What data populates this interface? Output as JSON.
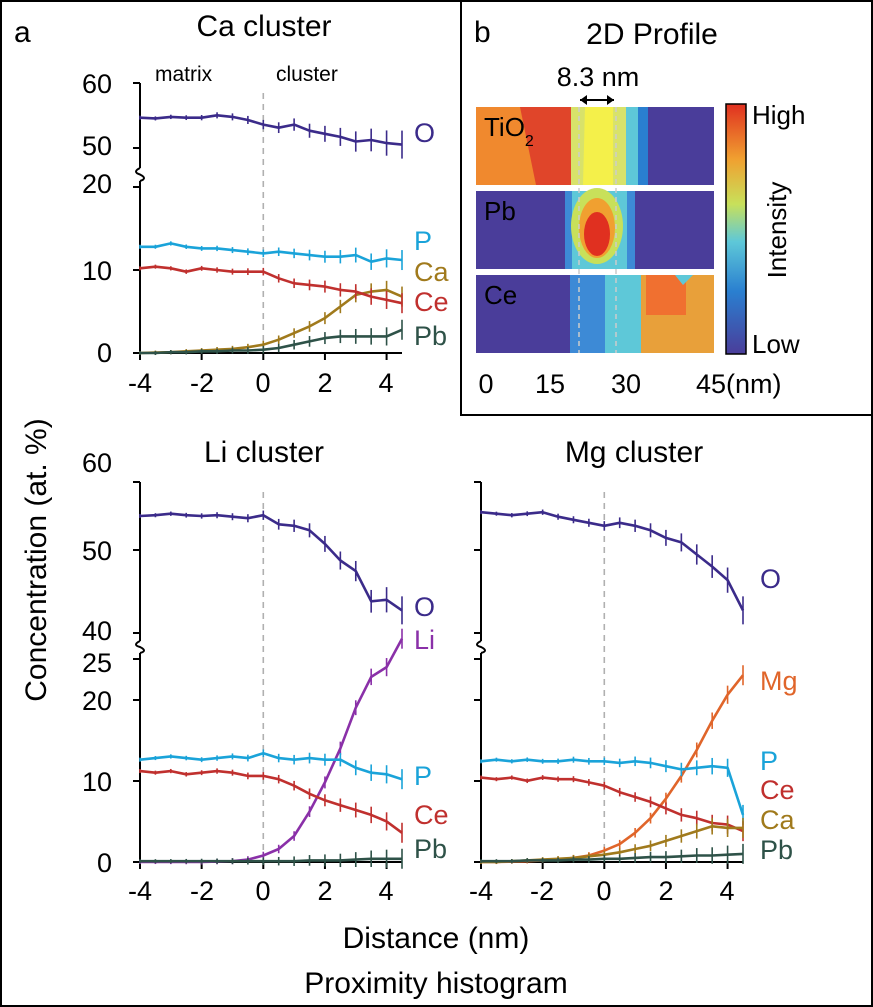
{
  "panel_letters": {
    "a": "a",
    "b": "b"
  },
  "shared": {
    "ylabel": "Concentration (at. %)",
    "xlabel": "Distance (nm)",
    "caption": "Proximity histogram"
  },
  "colors": {
    "O": "#3b2b8a",
    "P": "#1aa3d9",
    "Ca": "#a07a1c",
    "Ce": "#c0302e",
    "Pb": "#2e5248",
    "Li": "#8a30a8",
    "Mg": "#e0652a",
    "dashed": "#b0b0b0",
    "frame": "#000000"
  },
  "chart_data": [
    {
      "type": "line",
      "title": "Ca cluster",
      "region_labels": {
        "left": "matrix",
        "right": "cluster"
      },
      "x_ticks": [
        "-4",
        "-2",
        "0",
        "2",
        "4"
      ],
      "y_ticks_lower": [
        "0",
        "10",
        "20"
      ],
      "y_ticks_upper": [
        "50",
        "60"
      ],
      "axis_break": true,
      "lower_ylim": [
        0,
        20
      ],
      "upper_ylim": [
        50,
        60
      ],
      "xlim": [
        -4,
        4.5
      ],
      "x": [
        -4,
        -3.5,
        -3,
        -2.5,
        -2,
        -1.5,
        -1,
        -0.5,
        0,
        0.5,
        1,
        1.5,
        2,
        2.5,
        3,
        3.5,
        4,
        4.5
      ],
      "series": [
        {
          "name": "O",
          "color_key": "O",
          "segment": "upper",
          "values": [
            55.5,
            55.4,
            55.6,
            55.5,
            55.5,
            55.8,
            55.6,
            55.2,
            54.6,
            54.2,
            54.6,
            53.8,
            53.4,
            53.0,
            52.4,
            52.6,
            52.2,
            52.0
          ]
        },
        {
          "name": "P",
          "color_key": "P",
          "segment": "lower",
          "values": [
            12.8,
            12.8,
            13.2,
            12.8,
            12.6,
            12.6,
            12.4,
            12.2,
            12.0,
            12.2,
            12.0,
            11.8,
            11.6,
            11.6,
            11.8,
            11.0,
            11.4,
            11.2
          ]
        },
        {
          "name": "Ca",
          "color_key": "Ca",
          "segment": "lower",
          "values": [
            0.0,
            0.05,
            0.1,
            0.2,
            0.3,
            0.4,
            0.5,
            0.7,
            1.0,
            1.6,
            2.4,
            3.2,
            4.2,
            5.6,
            7.0,
            7.4,
            7.6,
            6.8
          ]
        },
        {
          "name": "Ce",
          "color_key": "Ce",
          "segment": "lower",
          "values": [
            10.2,
            10.4,
            10.2,
            9.8,
            10.2,
            10.0,
            9.8,
            9.8,
            9.8,
            9.0,
            8.4,
            8.2,
            8.0,
            7.6,
            7.4,
            6.8,
            6.4,
            6.0
          ]
        },
        {
          "name": "Pb",
          "color_key": "Pb",
          "segment": "lower",
          "values": [
            0.0,
            0.0,
            0.1,
            0.1,
            0.2,
            0.2,
            0.3,
            0.3,
            0.4,
            0.6,
            1.0,
            1.4,
            1.8,
            2.0,
            2.0,
            2.0,
            2.0,
            2.8
          ]
        }
      ]
    },
    {
      "type": "line",
      "title": "Li cluster",
      "x_ticks": [
        "-4",
        "-2",
        "0",
        "2",
        "4"
      ],
      "y_ticks_lower": [
        "0",
        "10",
        "20",
        "25"
      ],
      "y_ticks_upper": [
        "40",
        "50",
        "60"
      ],
      "axis_break": true,
      "lower_ylim": [
        0,
        25
      ],
      "upper_ylim": [
        40,
        60
      ],
      "xlim": [
        -4,
        4.5
      ],
      "x": [
        -4,
        -3.5,
        -3,
        -2.5,
        -2,
        -1.5,
        -1,
        -0.5,
        0,
        0.5,
        1,
        1.5,
        2,
        2.5,
        3,
        3.5,
        4,
        4.5
      ],
      "series": [
        {
          "name": "O",
          "color_key": "O",
          "segment": "upper",
          "values": [
            55.5,
            55.6,
            55.8,
            55.6,
            55.5,
            55.6,
            55.4,
            55.2,
            55.6,
            54.4,
            54.2,
            53.6,
            51.8,
            49.6,
            48.2,
            44.2,
            44.4,
            43.0
          ]
        },
        {
          "name": "Li",
          "color_key": "Li",
          "segment": "lower",
          "values": [
            0.0,
            0.0,
            0.0,
            0.0,
            0.0,
            0.05,
            0.1,
            0.3,
            0.8,
            1.6,
            3.2,
            6.2,
            9.8,
            14.0,
            19.0,
            22.8,
            24.0,
            27.5
          ]
        },
        {
          "name": "P",
          "color_key": "P",
          "segment": "lower",
          "values": [
            12.6,
            12.8,
            13.0,
            12.8,
            12.6,
            12.8,
            13.0,
            12.8,
            13.4,
            12.8,
            12.6,
            12.8,
            12.6,
            12.6,
            11.6,
            11.0,
            10.8,
            10.2
          ]
        },
        {
          "name": "Ce",
          "color_key": "Ce",
          "segment": "lower",
          "values": [
            11.2,
            11.0,
            11.2,
            10.8,
            11.0,
            11.2,
            11.0,
            10.6,
            10.6,
            10.2,
            9.4,
            8.4,
            7.6,
            7.0,
            6.4,
            5.8,
            5.0,
            3.6
          ]
        },
        {
          "name": "Pb",
          "color_key": "Pb",
          "segment": "lower",
          "values": [
            0.1,
            0.1,
            0.1,
            0.1,
            0.1,
            0.1,
            0.1,
            0.1,
            0.1,
            0.1,
            0.1,
            0.2,
            0.2,
            0.2,
            0.3,
            0.4,
            0.4,
            0.4
          ]
        }
      ]
    },
    {
      "type": "line",
      "title": "Mg cluster",
      "x_ticks": [
        "-4",
        "-2",
        "0",
        "2",
        "4"
      ],
      "axis_break": true,
      "lower_ylim": [
        0,
        25
      ],
      "upper_ylim": [
        40,
        60
      ],
      "xlim": [
        -4,
        4.5
      ],
      "x": [
        -4,
        -3.5,
        -3,
        -2.5,
        -2,
        -1.5,
        -1,
        -0.5,
        0,
        0.5,
        1,
        1.5,
        2,
        2.5,
        3,
        3.5,
        4,
        4.5
      ],
      "series": [
        {
          "name": "O",
          "color_key": "O",
          "segment": "upper",
          "values": [
            56.0,
            55.8,
            55.6,
            55.8,
            56.0,
            55.4,
            55.0,
            54.6,
            54.2,
            54.6,
            54.2,
            53.6,
            52.6,
            52.0,
            50.4,
            48.8,
            47.0,
            43.0
          ]
        },
        {
          "name": "Mg",
          "color_key": "Mg",
          "segment": "lower",
          "values": [
            0.0,
            0.0,
            0.05,
            0.1,
            0.2,
            0.3,
            0.5,
            0.8,
            1.4,
            2.2,
            3.6,
            5.4,
            7.8,
            10.6,
            13.8,
            17.4,
            20.6,
            23.0
          ]
        },
        {
          "name": "P",
          "color_key": "P",
          "segment": "lower",
          "values": [
            12.4,
            12.6,
            12.4,
            12.6,
            12.4,
            12.4,
            12.6,
            12.4,
            12.4,
            12.2,
            12.4,
            12.2,
            11.8,
            11.4,
            11.6,
            11.8,
            11.6,
            5.8
          ]
        },
        {
          "name": "Ce",
          "color_key": "Ce",
          "segment": "lower",
          "values": [
            10.4,
            10.2,
            10.4,
            10.0,
            10.4,
            10.2,
            10.2,
            9.8,
            9.4,
            8.6,
            8.0,
            7.4,
            6.6,
            5.8,
            5.4,
            4.8,
            4.6,
            3.8
          ]
        },
        {
          "name": "Ca",
          "color_key": "Ca",
          "segment": "lower",
          "values": [
            0.0,
            0.0,
            0.1,
            0.2,
            0.3,
            0.4,
            0.5,
            0.7,
            0.9,
            1.2,
            1.6,
            2.0,
            2.6,
            3.2,
            3.8,
            4.4,
            4.2,
            4.2
          ]
        },
        {
          "name": "Pb",
          "color_key": "Pb",
          "segment": "lower",
          "values": [
            0.1,
            0.1,
            0.1,
            0.2,
            0.2,
            0.2,
            0.3,
            0.3,
            0.4,
            0.4,
            0.5,
            0.6,
            0.6,
            0.7,
            0.8,
            0.8,
            0.9,
            1.0
          ]
        }
      ]
    },
    {
      "type": "heatmap",
      "title": "2D Profile",
      "scale_note": "8.3 nm",
      "rows": [
        "TiO",
        "Pb",
        "Ce"
      ],
      "row_subscript": {
        "TiO": "2"
      },
      "x_ticks": [
        "0",
        "15",
        "30",
        "45(nm)"
      ],
      "xlim": [
        0,
        45
      ],
      "colorbar": {
        "high": "High",
        "low": "Low",
        "label": "Intensity"
      }
    }
  ]
}
